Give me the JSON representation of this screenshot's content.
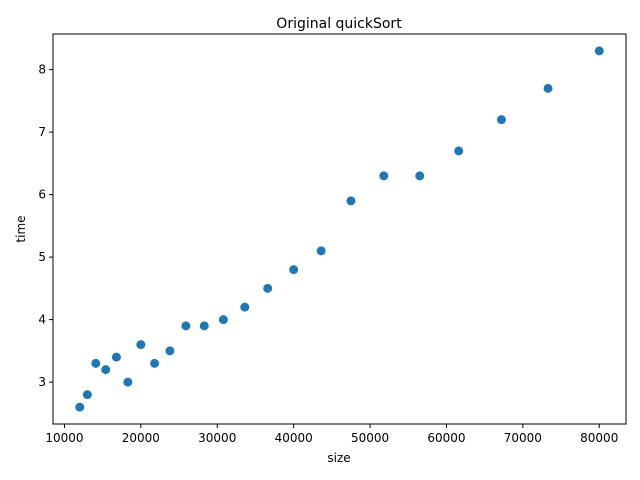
{
  "chart_data": {
    "type": "scatter",
    "title": "Original quickSort",
    "xlabel": "size",
    "ylabel": "time",
    "xlim": [
      8500,
      83500
    ],
    "ylim": [
      2.33,
      8.57
    ],
    "xticks": [
      10000,
      20000,
      30000,
      40000,
      50000,
      60000,
      70000,
      80000
    ],
    "xtick_labels": [
      "10000",
      "20000",
      "30000",
      "40000",
      "50000",
      "60000",
      "70000",
      "80000"
    ],
    "yticks": [
      3,
      4,
      5,
      6,
      7,
      8
    ],
    "ytick_labels": [
      "3",
      "4",
      "5",
      "6",
      "7",
      "8"
    ],
    "grid": false,
    "marker_color": "#1f77b4",
    "points": [
      {
        "x": 12000,
        "y": 2.6
      },
      {
        "x": 13000,
        "y": 2.8
      },
      {
        "x": 14100,
        "y": 3.3
      },
      {
        "x": 15400,
        "y": 3.2
      },
      {
        "x": 16800,
        "y": 3.4
      },
      {
        "x": 18300,
        "y": 3.0
      },
      {
        "x": 20000,
        "y": 3.6
      },
      {
        "x": 21800,
        "y": 3.3
      },
      {
        "x": 23800,
        "y": 3.5
      },
      {
        "x": 25900,
        "y": 3.9
      },
      {
        "x": 28300,
        "y": 3.9
      },
      {
        "x": 30800,
        "y": 4.0
      },
      {
        "x": 33600,
        "y": 4.2
      },
      {
        "x": 36600,
        "y": 4.5
      },
      {
        "x": 40000,
        "y": 4.8
      },
      {
        "x": 43600,
        "y": 5.1
      },
      {
        "x": 47500,
        "y": 5.9
      },
      {
        "x": 51800,
        "y": 6.3
      },
      {
        "x": 56500,
        "y": 6.3
      },
      {
        "x": 61600,
        "y": 6.7
      },
      {
        "x": 67200,
        "y": 7.2
      },
      {
        "x": 73300,
        "y": 7.7
      },
      {
        "x": 80000,
        "y": 8.3
      }
    ]
  }
}
